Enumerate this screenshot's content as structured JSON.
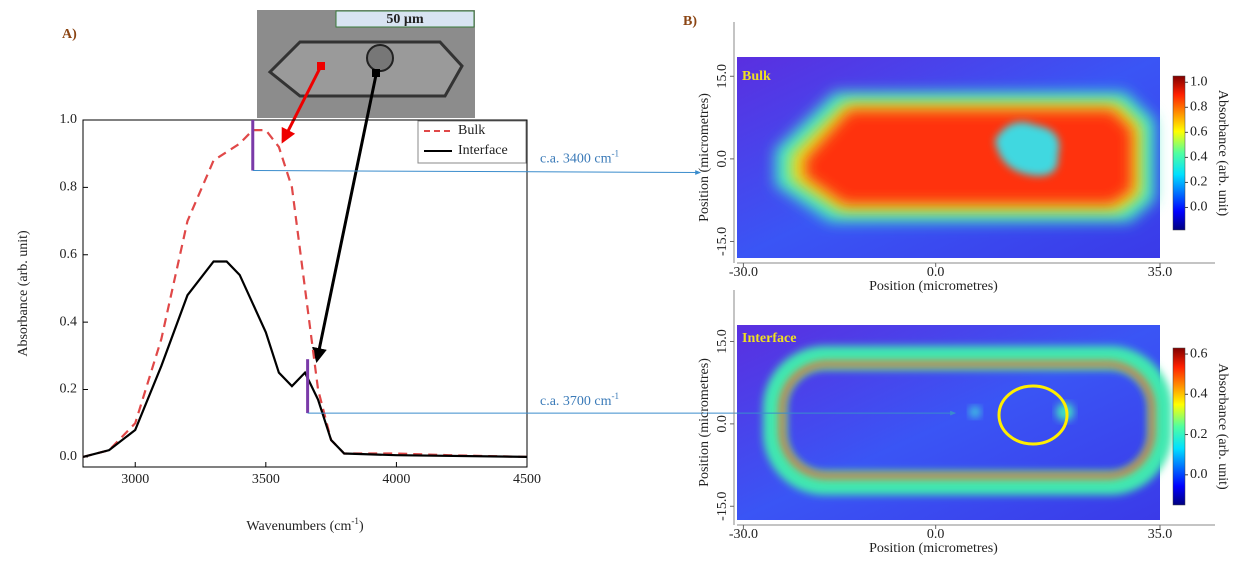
{
  "chart_data": [
    {
      "type": "line",
      "panel_label": "A)",
      "x_label": {
        "before": "Wavenumbers (cm",
        "sup": "-1",
        "after": ")"
      },
      "y_label": "Absorbance (arb. unit)",
      "xlim": [
        2800,
        4500
      ],
      "xticks": [
        3000,
        3500,
        4000,
        4500
      ],
      "ylim": [
        -0.03,
        1.0
      ],
      "yticks": [
        {
          "value": 0,
          "label": "0.0"
        },
        {
          "value": 0.2,
          "label": "0.2"
        },
        {
          "value": 0.4,
          "label": "0.4"
        },
        {
          "value": 0.6,
          "label": "0.6"
        },
        {
          "value": 0.8,
          "label": "0.8"
        },
        {
          "value": 1.0,
          "label": "1.0"
        }
      ],
      "legend": "top-right",
      "series": [
        {
          "name": "Bulk",
          "color": "#e04848",
          "dash": true,
          "x": [
            2800,
            2900,
            3000,
            3100,
            3200,
            3300,
            3400,
            3450,
            3500,
            3550,
            3600,
            3650,
            3700,
            3750,
            3800,
            3900,
            4000,
            4200,
            4500
          ],
          "values": [
            0.0,
            0.02,
            0.1,
            0.35,
            0.7,
            0.88,
            0.93,
            0.97,
            0.97,
            0.92,
            0.8,
            0.5,
            0.2,
            0.05,
            0.01,
            0.01,
            0.01,
            0.005,
            0.0
          ]
        },
        {
          "name": "Interface",
          "color": "#000000",
          "dash": false,
          "x": [
            2800,
            2900,
            3000,
            3100,
            3200,
            3300,
            3350,
            3400,
            3500,
            3550,
            3600,
            3650,
            3700,
            3750,
            3800,
            4000,
            4500
          ],
          "values": [
            0.0,
            0.02,
            0.08,
            0.27,
            0.48,
            0.58,
            0.58,
            0.54,
            0.37,
            0.25,
            0.21,
            0.25,
            0.17,
            0.05,
            0.01,
            0.005,
            0.0
          ]
        }
      ],
      "markers": [
        {
          "x": 3450,
          "y": [
            0.85,
            1.0
          ]
        },
        {
          "x": 3660,
          "y": [
            0.13,
            0.29
          ]
        }
      ],
      "annotations": [
        {
          "before": "c.a. 3400 cm",
          "sup": "-1"
        },
        {
          "before": "c.a. 3700 cm",
          "sup": "-1"
        }
      ],
      "image_scale_bar": "50 µm"
    },
    {
      "type": "heatmap",
      "panel_label": "B)",
      "title": "Bulk",
      "x_label": "Position (micrometres)",
      "y_label": "Position (micrometres)",
      "colorbar_label": "Absorbance (arb. unit)",
      "xlim": [
        -31,
        35
      ],
      "xticks": [
        {
          "value": -30,
          "label": "-30.0"
        },
        {
          "value": 0,
          "label": "0.0"
        },
        {
          "value": 35,
          "label": "35.0"
        }
      ],
      "ylim": [
        -18,
        18.5
      ],
      "yticks": [
        {
          "value": 15,
          "label": "15.0"
        },
        {
          "value": 0,
          "label": "0.0"
        },
        {
          "value": -15,
          "label": "-15.0"
        }
      ],
      "clim": [
        -0.18,
        1.05
      ],
      "cticks": [
        {
          "value": 1,
          "label": "1.0"
        },
        {
          "value": 0.8,
          "label": "0.8"
        },
        {
          "value": 0.6,
          "label": "0.6"
        },
        {
          "value": 0.4,
          "label": "0.4"
        },
        {
          "value": 0.2,
          "label": "0.2"
        },
        {
          "value": 0,
          "label": "0.0"
        }
      ]
    },
    {
      "type": "heatmap",
      "title": "Interface",
      "x_label": "Position (micrometres)",
      "y_label": "Position (micrometres)",
      "colorbar_label": "Absorbance (arb. unit)",
      "xlim": [
        -31,
        35
      ],
      "xticks": [
        {
          "value": -30,
          "label": "-30.0"
        },
        {
          "value": 0,
          "label": "0.0"
        },
        {
          "value": 35,
          "label": "35.0"
        }
      ],
      "ylim": [
        -17.5,
        18
      ],
      "yticks": [
        {
          "value": 15,
          "label": "15.0"
        },
        {
          "value": 0,
          "label": "0.0"
        },
        {
          "value": -15,
          "label": "-15.0"
        }
      ],
      "clim": [
        -0.15,
        0.63
      ],
      "cticks": [
        {
          "value": 0.6,
          "label": "0.6"
        },
        {
          "value": 0.4,
          "label": "0.4"
        },
        {
          "value": 0.2,
          "label": "0.2"
        },
        {
          "value": 0,
          "label": "0.0"
        }
      ]
    }
  ]
}
